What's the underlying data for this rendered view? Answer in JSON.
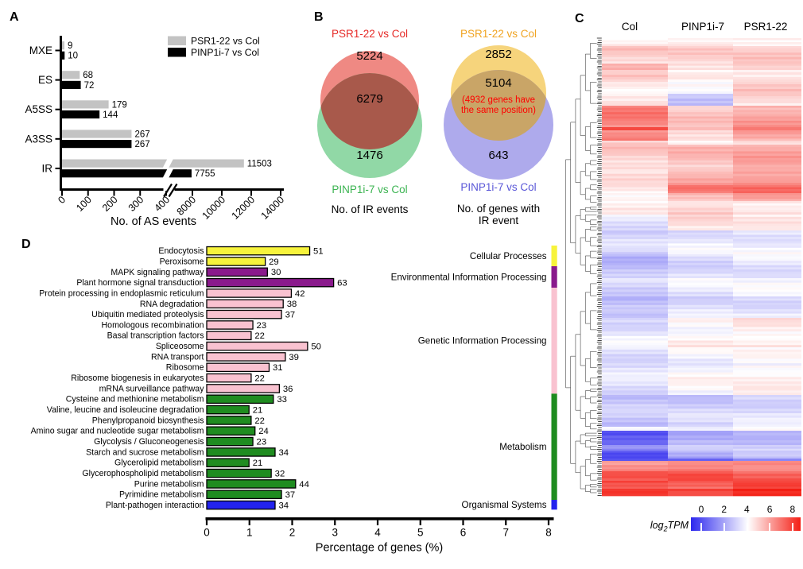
{
  "figure_labels": {
    "a": "A",
    "b": "B",
    "c": "C",
    "d": "D"
  },
  "chart_data": {
    "as_events": {
      "type": "bar",
      "orientation": "horizontal",
      "categories": [
        "MXE",
        "ES",
        "A5SS",
        "A3SS",
        "IR"
      ],
      "series": [
        {
          "name": "PSR1-22 vs Col",
          "color": "#c3c3c3",
          "values": [
            9,
            68,
            179,
            267,
            11503
          ]
        },
        {
          "name": "PINP1i-7 vs Col",
          "color": "#000000",
          "values": [
            10,
            72,
            144,
            267,
            7755
          ]
        }
      ],
      "xlabel": "No. of AS events",
      "x_ticks": [
        0,
        100,
        200,
        300,
        400,
        8000,
        10000,
        12000,
        14000
      ],
      "axis_break_between": [
        400,
        8000
      ],
      "legend_position": "top-right"
    },
    "venn_ir_events": {
      "type": "venn",
      "title": "No. of IR events",
      "sets": [
        {
          "label": "PSR1-22 vs Col",
          "label_color": "#e62b28",
          "fill": "#ef8983",
          "only": 5224
        },
        {
          "label": "PINP1i-7 vs Col",
          "label_color": "#3cb452",
          "fill": "#91d8a6",
          "only": 1476
        }
      ],
      "overlap": 6279,
      "overlap_fill": "#a8594b"
    },
    "venn_ir_genes": {
      "type": "venn",
      "title_lines": [
        "No. of genes with",
        "IR event"
      ],
      "sets": [
        {
          "label": "PSR1-22 vs Col",
          "label_color": "#f0a422",
          "fill": "#f6d47c",
          "only": 2852
        },
        {
          "label": "PINP1i-7 vs Col",
          "label_color": "#5a57d8",
          "fill": "#aeaaec",
          "only": 643
        }
      ],
      "overlap": 5104,
      "overlap_note_lines": [
        "(4932 genes have",
        "the same position)"
      ],
      "overlap_note_color": "#ff0000",
      "overlap_fill": "#c9a567"
    },
    "heatmap": {
      "type": "heatmap",
      "columns": [
        "Col",
        "PINP1i-7",
        "PSR1-22"
      ],
      "colorbar": {
        "label": "log2TPM",
        "label_parts": [
          "log",
          "2",
          "TPM"
        ],
        "ticks": [
          0,
          2,
          4,
          6,
          8
        ],
        "min_color": "#2d28ee",
        "mid_color": "#ffffff",
        "max_color": "#f41e14"
      },
      "value_range": [
        0,
        8
      ],
      "bands": [
        [
          10,
          4.0,
          4.4,
          4.5
        ],
        [
          22,
          4.9,
          4.7,
          4.8
        ],
        [
          8,
          5.6,
          4.8,
          4.9
        ],
        [
          12,
          4.8,
          4.5,
          4.7
        ],
        [
          18,
          4.2,
          3.7,
          4.8
        ],
        [
          15,
          4.7,
          3.1,
          4.6
        ],
        [
          27,
          6.2,
          4.9,
          5.6
        ],
        [
          4,
          7.4,
          5.2,
          6.2
        ],
        [
          13,
          6.3,
          4.9,
          5.7
        ],
        [
          5,
          4.6,
          4.2,
          4.9
        ],
        [
          31,
          4.9,
          5.1,
          5.5
        ],
        [
          20,
          4.4,
          5.4,
          5.9
        ],
        [
          10,
          4.5,
          6.3,
          6.4
        ],
        [
          10,
          4.4,
          5.4,
          5.7
        ],
        [
          17,
          4.1,
          4.7,
          4.6
        ],
        [
          20,
          3.6,
          4.5,
          4.2
        ],
        [
          30,
          3.2,
          3.6,
          3.7
        ],
        [
          30,
          2.8,
          3.4,
          3.6
        ],
        [
          23,
          3.3,
          3.6,
          3.7
        ],
        [
          27,
          2.7,
          3.4,
          3.5
        ],
        [
          20,
          3.5,
          4.1,
          4.3
        ],
        [
          17,
          3.6,
          4.2,
          4.4
        ],
        [
          23,
          3.5,
          3.8,
          3.9
        ],
        [
          20,
          3.4,
          4.0,
          4.3
        ],
        [
          17,
          3.5,
          3.9,
          4.1
        ],
        [
          23,
          2.9,
          3.1,
          3.4
        ],
        [
          17,
          3.0,
          3.2,
          3.4
        ],
        [
          5,
          4.2,
          4.0,
          4.0
        ],
        [
          18,
          0.8,
          2.6,
          2.9
        ],
        [
          7,
          1.8,
          2.8,
          3.0
        ],
        [
          10,
          0.9,
          2.4,
          2.7
        ],
        [
          3,
          1.2,
          1.2,
          1.5
        ],
        [
          13,
          5.9,
          6.4,
          6.3
        ],
        [
          12,
          6.8,
          7.0,
          6.9
        ],
        [
          10,
          7.2,
          6.6,
          7.1
        ],
        [
          9,
          7.9,
          7.5,
          7.8
        ]
      ]
    },
    "kegg": {
      "type": "bar",
      "orientation": "horizontal",
      "xlabel": "Percentage of genes (%)",
      "x_ticks": [
        0,
        1,
        2,
        3,
        4,
        5,
        6,
        7,
        8
      ],
      "category_groups": [
        {
          "name": "Cellular Processes",
          "color": "#f7f33c"
        },
        {
          "name": "Environmental Information Processing",
          "color": "#8a1a8c"
        },
        {
          "name": "Genetic Information Processing",
          "color": "#f9c2d0"
        },
        {
          "name": "Metabolism",
          "color": "#1f8c20"
        },
        {
          "name": "Organismal Systems",
          "color": "#2323ee"
        }
      ],
      "rows": [
        {
          "label": "Endocytosis",
          "count": 51,
          "pct": 2.41,
          "group": 0
        },
        {
          "label": "Peroxisome",
          "count": 29,
          "pct": 1.37,
          "group": 0
        },
        {
          "label": "MAPK signaling pathway",
          "count": 30,
          "pct": 1.42,
          "group": 1
        },
        {
          "label": "Plant hormone signal transduction",
          "count": 63,
          "pct": 2.97,
          "group": 1
        },
        {
          "label": "Protein processing in endoplasmic reticulum",
          "count": 42,
          "pct": 1.98,
          "group": 2
        },
        {
          "label": "RNA degradation",
          "count": 38,
          "pct": 1.79,
          "group": 2
        },
        {
          "label": "Ubiquitin mediated proteolysis",
          "count": 37,
          "pct": 1.75,
          "group": 2
        },
        {
          "label": "Homologous recombination",
          "count": 23,
          "pct": 1.08,
          "group": 2
        },
        {
          "label": "Basal transcription factors",
          "count": 22,
          "pct": 1.04,
          "group": 2
        },
        {
          "label": "Spliceosome",
          "count": 50,
          "pct": 2.36,
          "group": 2
        },
        {
          "label": "RNA transport",
          "count": 39,
          "pct": 1.84,
          "group": 2
        },
        {
          "label": "Ribosome",
          "count": 31,
          "pct": 1.46,
          "group": 2
        },
        {
          "label": "Ribosome biogenesis in eukaryotes",
          "count": 22,
          "pct": 1.04,
          "group": 2
        },
        {
          "label": "mRNA surveillance pathway",
          "count": 36,
          "pct": 1.7,
          "group": 2
        },
        {
          "label": "Cysteine and methionine metabolism",
          "count": 33,
          "pct": 1.56,
          "group": 3
        },
        {
          "label": "Valine, leucine and isoleucine degradation",
          "count": 21,
          "pct": 0.99,
          "group": 3
        },
        {
          "label": "Phenylpropanoid biosynthesis",
          "count": 22,
          "pct": 1.04,
          "group": 3
        },
        {
          "label": "Amino sugar and nucleotide sugar metabolism",
          "count": 24,
          "pct": 1.13,
          "group": 3
        },
        {
          "label": "Glycolysis / Gluconeogenesis",
          "count": 23,
          "pct": 1.08,
          "group": 3
        },
        {
          "label": "Starch and sucrose metabolism",
          "count": 34,
          "pct": 1.6,
          "group": 3
        },
        {
          "label": "Glycerolipid metabolism",
          "count": 21,
          "pct": 0.99,
          "group": 3
        },
        {
          "label": "Glycerophospholipid metabolism",
          "count": 32,
          "pct": 1.51,
          "group": 3
        },
        {
          "label": "Purine metabolism",
          "count": 44,
          "pct": 2.08,
          "group": 3
        },
        {
          "label": "Pyrimidine metabolism",
          "count": 37,
          "pct": 1.75,
          "group": 3
        },
        {
          "label": "Plant-pathogen interaction",
          "count": 34,
          "pct": 1.6,
          "group": 4
        }
      ]
    }
  }
}
